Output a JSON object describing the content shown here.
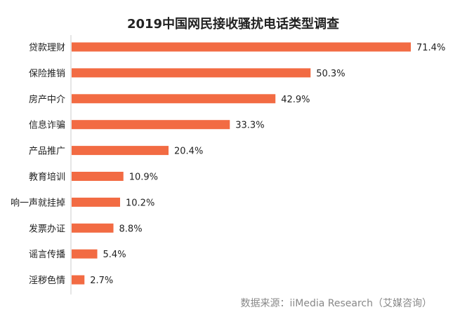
{
  "chart_data": {
    "type": "bar",
    "orientation": "horizontal",
    "title": "2019中国网民接收骚扰电话类型调查",
    "categories": [
      "贷款理财",
      "保险推销",
      "房产中介",
      "信息诈骗",
      "产品推广",
      "教育培训",
      "响一声就挂掉",
      "发票办证",
      "谣言传播",
      "淫秽色情"
    ],
    "values": [
      71.4,
      50.3,
      42.9,
      33.3,
      20.4,
      10.9,
      10.2,
      8.8,
      5.4,
      2.7
    ],
    "value_labels": [
      "71.4%",
      "50.3%",
      "42.9%",
      "33.3%",
      "20.4%",
      "10.9%",
      "10.2%",
      "8.8%",
      "5.4%",
      "2.7%"
    ],
    "unit": "%",
    "xlabel": "",
    "ylabel": "",
    "grid": false,
    "legend": "none",
    "bar_color": "#F26B43",
    "source": "数据来源：iiMedia Research（艾媒咨询）"
  }
}
